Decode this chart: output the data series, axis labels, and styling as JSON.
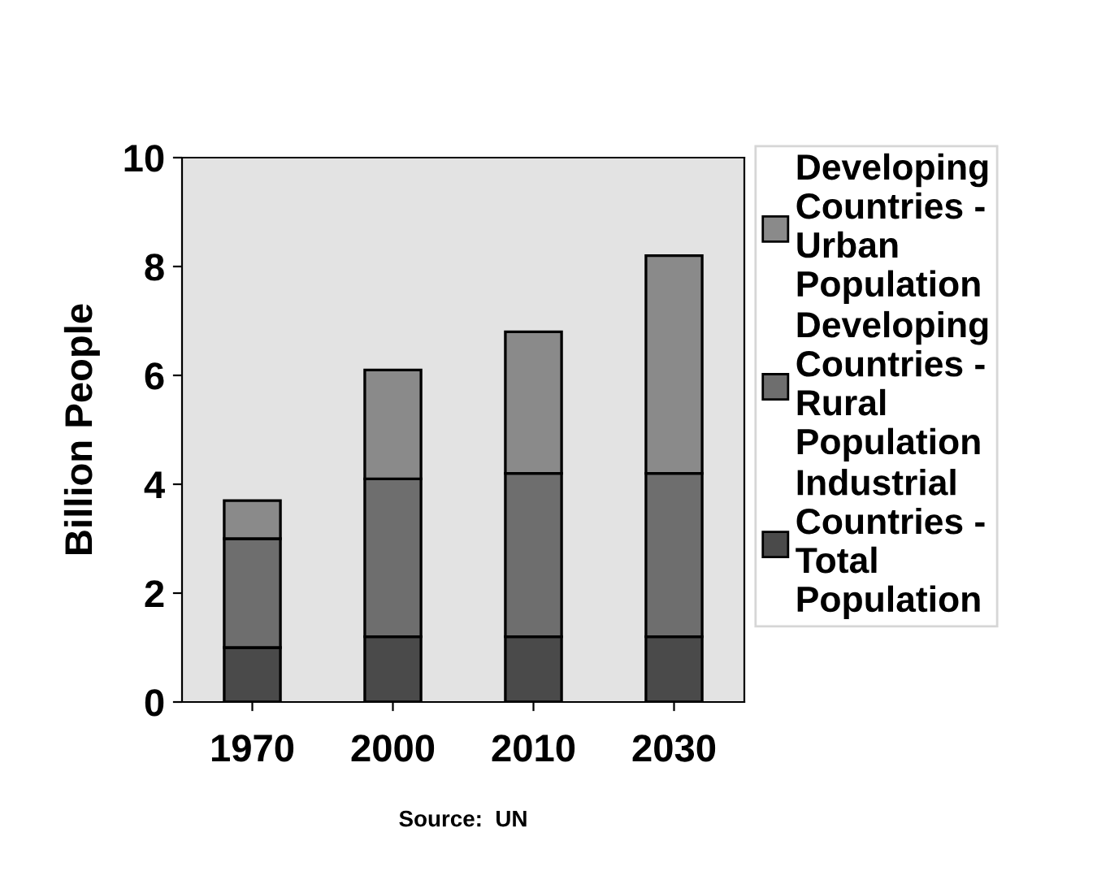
{
  "chart_data": {
    "type": "bar",
    "stacked": true,
    "ylabel": "Billion People",
    "categories": [
      "1970",
      "2000",
      "2010",
      "2030"
    ],
    "series": [
      {
        "name": "Industrial Countries - Total Population",
        "color": "#4a4a4a",
        "values": [
          1.0,
          1.2,
          1.2,
          1.2
        ]
      },
      {
        "name": "Developing Countries - Rural Population",
        "color": "#6e6e6e",
        "values": [
          2.0,
          2.9,
          3.0,
          3.0
        ]
      },
      {
        "name": "Developing Countries - Urban Population",
        "color": "#8a8a8a",
        "values": [
          0.7,
          2.0,
          2.6,
          4.0
        ]
      }
    ],
    "ylim": [
      0,
      10
    ],
    "yticks": [
      0,
      2,
      4,
      6,
      8,
      10
    ],
    "grid": false,
    "legend": "right",
    "annotations": [
      "Source:  UN"
    ]
  }
}
